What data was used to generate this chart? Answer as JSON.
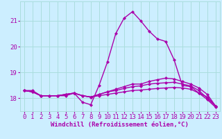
{
  "xlabel": "Windchill (Refroidissement éolien,°C)",
  "background_color": "#cceeff",
  "grid_color": "#aadddd",
  "line_color": "#aa00aa",
  "xlim": [
    -0.5,
    23.5
  ],
  "ylim": [
    17.5,
    21.75
  ],
  "yticks": [
    18,
    19,
    20,
    21
  ],
  "xticks": [
    0,
    1,
    2,
    3,
    4,
    5,
    6,
    7,
    8,
    9,
    10,
    11,
    12,
    13,
    14,
    15,
    16,
    17,
    18,
    19,
    20,
    21,
    22,
    23
  ],
  "series": [
    [
      18.3,
      18.3,
      18.1,
      18.1,
      18.1,
      18.1,
      18.2,
      17.85,
      17.75,
      18.5,
      19.4,
      20.5,
      21.1,
      21.35,
      21.0,
      20.6,
      20.3,
      20.2,
      19.5,
      18.5,
      18.45,
      18.2,
      18.05,
      17.7
    ],
    [
      18.3,
      18.25,
      18.1,
      18.1,
      18.1,
      18.15,
      18.2,
      18.1,
      18.05,
      18.15,
      18.25,
      18.35,
      18.45,
      18.55,
      18.55,
      18.65,
      18.72,
      18.78,
      18.75,
      18.65,
      18.55,
      18.4,
      18.15,
      17.7
    ],
    [
      18.3,
      18.25,
      18.1,
      18.1,
      18.1,
      18.15,
      18.2,
      18.1,
      18.05,
      18.15,
      18.25,
      18.3,
      18.38,
      18.45,
      18.48,
      18.55,
      18.58,
      18.6,
      18.62,
      18.55,
      18.48,
      18.3,
      18.0,
      17.7
    ],
    [
      18.3,
      18.25,
      18.1,
      18.1,
      18.1,
      18.15,
      18.2,
      18.1,
      18.05,
      18.1,
      18.15,
      18.2,
      18.25,
      18.3,
      18.32,
      18.35,
      18.38,
      18.4,
      18.42,
      18.4,
      18.35,
      18.2,
      17.95,
      17.65
    ]
  ],
  "marker": "D",
  "markersize": 2,
  "linewidth": 1.0,
  "fontsize_xlabel": 6.5,
  "fontsize_tick": 6.5
}
